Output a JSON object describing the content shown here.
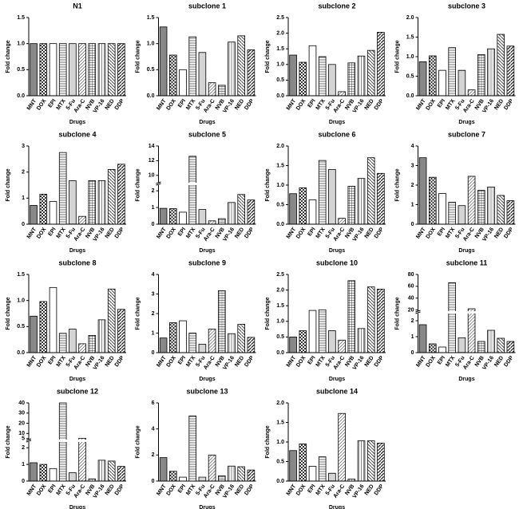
{
  "chart_data": [
    {
      "type": "bar",
      "title": "N1",
      "xlabel": "Drugs",
      "ylabel": "Fold change",
      "categories": [
        "MNT",
        "DOX",
        "EPI",
        "MTX",
        "5-Fu",
        "Ara-C",
        "NVB",
        "VP-16",
        "NED",
        "DDP"
      ],
      "values": [
        1,
        1,
        1,
        1,
        1,
        1,
        1,
        1,
        1,
        1
      ],
      "ylim": [
        0,
        1.5
      ],
      "yticks": [
        {
          "value": 0,
          "label": "0.0"
        },
        0.5,
        {
          "value": 1,
          "label": "1.0"
        },
        1.5
      ]
    },
    {
      "type": "bar",
      "title": "subclone 1",
      "xlabel": "Drugs",
      "ylabel": "Fold change",
      "categories": [
        "MNT",
        "DOX",
        "EPI",
        "MTX",
        "5-Fu",
        "Ara-C",
        "NVB",
        "VP-16",
        "NED",
        "DDP"
      ],
      "values": [
        1.32,
        0.78,
        0.5,
        1.13,
        0.83,
        0.25,
        0.2,
        1.03,
        1.15,
        0.88
      ],
      "ylim": [
        0,
        1.5
      ],
      "yticks": [
        {
          "value": 0,
          "label": "0.0"
        },
        0.5,
        {
          "value": 1,
          "label": "1.0"
        },
        1.5
      ]
    },
    {
      "type": "bar",
      "title": "subclone 2",
      "xlabel": "Drugs",
      "ylabel": "Fold change",
      "categories": [
        "MNT",
        "DOX",
        "EPI",
        "MTX",
        "5-Fu",
        "Ara-C",
        "NVB",
        "VP-16",
        "NED",
        "DDP"
      ],
      "values": [
        1.3,
        1.07,
        1.6,
        1.25,
        1.0,
        0.13,
        1.05,
        1.27,
        1.45,
        2.03
      ],
      "ylim": [
        0,
        2.5
      ],
      "yticks": [
        {
          "value": 0,
          "label": "0.0"
        },
        0.5,
        {
          "value": 1,
          "label": "1.0"
        },
        1.5,
        {
          "value": 2,
          "label": "2.0"
        },
        2.5
      ]
    },
    {
      "type": "bar",
      "title": "subclone 3",
      "xlabel": "Drugs",
      "ylabel": "Fold change",
      "categories": [
        "MNT",
        "DOX",
        "EPI",
        "MTX",
        "5-Fu",
        "Ara-C",
        "NVB",
        "VP-16",
        "NED",
        "DDP"
      ],
      "values": [
        0.87,
        1.02,
        0.65,
        1.23,
        0.65,
        0.15,
        1.05,
        1.2,
        1.57,
        1.27
      ],
      "ylim": [
        0,
        2
      ],
      "yticks": [
        {
          "value": 0,
          "label": "0.0"
        },
        0.5,
        {
          "value": 1,
          "label": "1.0"
        },
        1.5,
        {
          "value": 2,
          "label": "2.0"
        }
      ]
    },
    {
      "type": "bar",
      "title": "subclone 4",
      "xlabel": "Drugs",
      "ylabel": "Fold change",
      "categories": [
        "MNT",
        "DOX",
        "EPI",
        "MTX",
        "5-Fu",
        "Ara-C",
        "NVB",
        "VP-16",
        "NED",
        "DDP"
      ],
      "values": [
        0.72,
        1.15,
        0.87,
        2.75,
        1.67,
        0.3,
        1.67,
        1.67,
        2.1,
        2.3
      ],
      "ylim": [
        0,
        3
      ],
      "yticks": [
        0,
        1,
        2,
        3
      ]
    },
    {
      "type": "bar",
      "title": "subclone 5",
      "xlabel": "Drugs",
      "ylabel": "Fold change",
      "categories": [
        "MNT",
        "DOX",
        "EPI",
        "MTX",
        "5-Fu",
        "Ara-C",
        "NVB",
        "VP-16",
        "NED",
        "DDP"
      ],
      "values": [
        0.95,
        0.93,
        0.72,
        12.6,
        0.88,
        0.2,
        0.33,
        1.3,
        1.78,
        1.45
      ],
      "ylim": [
        0,
        14
      ],
      "axis_break": [
        2.2,
        9
      ],
      "yticks": [
        0,
        1,
        2,
        10,
        12,
        14
      ]
    },
    {
      "type": "bar",
      "title": "subclone 6",
      "xlabel": "Drugs",
      "ylabel": "Fold change",
      "categories": [
        "MNT",
        "DOX",
        "EPI",
        "MTX",
        "5-Fu",
        "Ara-C",
        "NVB",
        "VP-16",
        "NED",
        "DDP"
      ],
      "values": [
        0.78,
        0.93,
        0.62,
        1.63,
        1.4,
        0.15,
        0.97,
        1.17,
        1.7,
        1.3
      ],
      "ylim": [
        0,
        2
      ],
      "yticks": [
        {
          "value": 0,
          "label": "0.0"
        },
        0.5,
        {
          "value": 1,
          "label": "1.0"
        },
        1.5,
        {
          "value": 2,
          "label": "2.0"
        }
      ]
    },
    {
      "type": "bar",
      "title": "subclone 7",
      "xlabel": "Drugs",
      "ylabel": "Fold change",
      "categories": [
        "MNT",
        "DOX",
        "EPI",
        "MTX",
        "5-Fu",
        "Ara-C",
        "NVB",
        "VP-16",
        "NED",
        "DDP"
      ],
      "values": [
        3.4,
        2.4,
        1.57,
        1.12,
        0.95,
        2.45,
        1.73,
        1.9,
        1.47,
        1.2
      ],
      "ylim": [
        0,
        4
      ],
      "yticks": [
        0,
        1,
        2,
        3,
        4
      ]
    },
    {
      "type": "bar",
      "title": "subclone 8",
      "xlabel": "Drugs",
      "ylabel": "Fold change",
      "categories": [
        "MNT",
        "DOX",
        "EPI",
        "MTX",
        "5-Fu",
        "Ara-C",
        "NVB",
        "VP-16",
        "NED",
        "DDP"
      ],
      "values": [
        0.7,
        0.98,
        1.25,
        0.37,
        0.45,
        0.17,
        0.33,
        0.63,
        1.22,
        0.83
      ],
      "ylim": [
        0,
        1.5
      ],
      "yticks": [
        {
          "value": 0,
          "label": "0.0"
        },
        0.5,
        {
          "value": 1,
          "label": "1.0"
        },
        1.5
      ]
    },
    {
      "type": "bar",
      "title": "subclone 9",
      "xlabel": "Drugs",
      "ylabel": "Fold change",
      "categories": [
        "MNT",
        "DOX",
        "EPI",
        "MTX",
        "5-Fu",
        "Ara-C",
        "NVB",
        "VP-16",
        "NED",
        "DDP"
      ],
      "values": [
        0.75,
        1.53,
        1.63,
        1.0,
        0.43,
        1.2,
        3.17,
        0.97,
        1.45,
        0.78
      ],
      "ylim": [
        0,
        4
      ],
      "yticks": [
        0,
        1,
        2,
        3,
        4
      ]
    },
    {
      "type": "bar",
      "title": "subclone 10",
      "xlabel": "Drugs",
      "ylabel": "Fold change",
      "categories": [
        "MNT",
        "DOX",
        "EPI",
        "MTX",
        "5-Fu",
        "Ara-C",
        "NVB",
        "VP-16",
        "NED",
        "DDP"
      ],
      "values": [
        0.5,
        0.7,
        1.35,
        1.37,
        0.7,
        0.4,
        2.3,
        0.77,
        2.1,
        2.03
      ],
      "ylim": [
        0,
        2.5
      ],
      "yticks": [
        {
          "value": 0,
          "label": "0.0"
        },
        0.5,
        {
          "value": 1,
          "label": "1.0"
        },
        1.5,
        {
          "value": 2,
          "label": "2.0"
        },
        2.5
      ]
    },
    {
      "type": "bar",
      "title": "subclone 11",
      "xlabel": "Drugs",
      "ylabel": "Fold change",
      "categories": [
        "MNT",
        "DOX",
        "EPI",
        "MTX",
        "5-Fu",
        "Ara-C",
        "NVB",
        "VP-16",
        "NED",
        "DDP"
      ],
      "values": [
        1.75,
        0.55,
        0.35,
        66,
        0.93,
        22,
        0.7,
        1.4,
        0.9,
        0.7
      ],
      "ylim": [
        0,
        80
      ],
      "axis_break": [
        2.3,
        18
      ],
      "yticks": [
        0,
        1,
        2,
        20,
        40,
        60,
        80
      ]
    },
    {
      "type": "bar",
      "title": "subclone 12",
      "xlabel": "Drugs",
      "ylabel": "Fold change",
      "categories": [
        "MNT",
        "DOX",
        "EPI",
        "MTX",
        "5-Fu",
        "Ara-C",
        "NVB",
        "VP-16",
        "NED",
        "DDP"
      ],
      "values": [
        1.1,
        1.0,
        0.75,
        40,
        0.5,
        5.3,
        0.13,
        1.25,
        1.2,
        0.88
      ],
      "ylim": [
        0,
        40
      ],
      "axis_break": [
        2.2,
        4
      ],
      "yticks": [
        0,
        1,
        2,
        5,
        10,
        20,
        30,
        40
      ]
    },
    {
      "type": "bar",
      "title": "subclone 13",
      "xlabel": "Drugs",
      "ylabel": "Fold change",
      "categories": [
        "MNT",
        "DOX",
        "EPI",
        "MTX",
        "5-Fu",
        "Ara-C",
        "NVB",
        "VP-16",
        "NED",
        "DDP"
      ],
      "values": [
        1.8,
        0.75,
        0.3,
        5.0,
        0.3,
        2.0,
        0.4,
        1.15,
        1.1,
        0.85
      ],
      "ylim": [
        0,
        6
      ],
      "yticks": [
        0,
        2,
        4,
        6
      ]
    },
    {
      "type": "bar",
      "title": "subclone 14",
      "xlabel": "Drugs",
      "ylabel": "Fold change",
      "categories": [
        "MNT",
        "DOX",
        "EPI",
        "MTX",
        "5-Fu",
        "Ara-C",
        "NVB",
        "VP-16",
        "NED",
        "DDP"
      ],
      "values": [
        0.78,
        0.95,
        0.38,
        0.62,
        0.2,
        1.73,
        0.05,
        1.03,
        1.03,
        0.97
      ],
      "ylim": [
        0,
        2
      ],
      "yticks": [
        {
          "value": 0,
          "label": "0.0"
        },
        0.5,
        {
          "value": 1,
          "label": "1.0"
        },
        1.5,
        {
          "value": 2,
          "label": "2.0"
        }
      ]
    }
  ]
}
